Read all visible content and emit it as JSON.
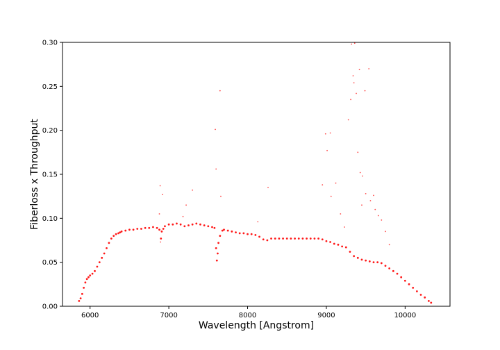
{
  "chart_data": {
    "type": "scatter",
    "title": "",
    "xlabel": "Wavelength [Angstrom]",
    "ylabel": "Fiberloss x Throughput",
    "xlim": [
      5650,
      10570
    ],
    "ylim": [
      0,
      0.3
    ],
    "grid": false,
    "marker_color": "#ff0000",
    "x_ticks": [
      6000,
      7000,
      8000,
      9000,
      10000
    ],
    "x_tick_labels": [
      "6000",
      "7000",
      "8000",
      "9000",
      "10000"
    ],
    "y_ticks": [
      0.0,
      0.05,
      0.1,
      0.15,
      0.2,
      0.25,
      0.3
    ],
    "y_tick_labels": [
      "0.00",
      "0.05",
      "0.10",
      "0.15",
      "0.20",
      "0.25",
      "0.30"
    ],
    "series": [
      {
        "x": [
          5860,
          5880,
          5900,
          5920,
          5940,
          5960,
          5980,
          6000,
          6030,
          6060,
          6090,
          6120,
          6150,
          6180,
          6210,
          6240,
          6270,
          6300,
          6330,
          6360,
          6380,
          6400,
          6450,
          6500,
          6550,
          6600,
          6650,
          6700,
          6750,
          6800,
          6850,
          6880,
          6900,
          6910,
          6930,
          6950,
          7000,
          7050,
          7100,
          7150,
          7200,
          7250,
          7300,
          7350,
          7400,
          7450,
          7500,
          7550,
          7580,
          7600,
          7610,
          7620,
          7630,
          7650,
          7680,
          7700,
          7750,
          7800,
          7850,
          7900,
          7950,
          8000,
          8050,
          8100,
          8150,
          8200,
          8250,
          8300,
          8350,
          8400,
          8450,
          8500,
          8550,
          8600,
          8650,
          8700,
          8750,
          8800,
          8850,
          8900,
          8950,
          9000,
          9050,
          9100,
          9150,
          9200,
          9250,
          9300,
          9350,
          9400,
          9450,
          9500,
          9550,
          9600,
          9650,
          9700,
          9750,
          9800,
          9850,
          9900,
          9950,
          10000,
          10050,
          10100,
          10150,
          10200,
          10250,
          10300,
          10330
        ],
        "y": [
          0.006,
          0.009,
          0.014,
          0.021,
          0.027,
          0.031,
          0.033,
          0.035,
          0.037,
          0.04,
          0.045,
          0.05,
          0.055,
          0.06,
          0.066,
          0.072,
          0.077,
          0.08,
          0.082,
          0.083,
          0.084,
          0.085,
          0.086,
          0.087,
          0.087,
          0.088,
          0.088,
          0.089,
          0.089,
          0.09,
          0.089,
          0.087,
          0.077,
          0.085,
          0.088,
          0.091,
          0.093,
          0.093,
          0.094,
          0.093,
          0.091,
          0.092,
          0.093,
          0.094,
          0.093,
          0.092,
          0.091,
          0.09,
          0.089,
          0.066,
          0.052,
          0.06,
          0.072,
          0.08,
          0.086,
          0.087,
          0.086,
          0.085,
          0.084,
          0.083,
          0.083,
          0.082,
          0.082,
          0.081,
          0.079,
          0.076,
          0.075,
          0.077,
          0.077,
          0.077,
          0.077,
          0.077,
          0.077,
          0.077,
          0.077,
          0.077,
          0.077,
          0.077,
          0.077,
          0.077,
          0.076,
          0.074,
          0.073,
          0.071,
          0.07,
          0.068,
          0.067,
          0.062,
          0.057,
          0.055,
          0.053,
          0.052,
          0.051,
          0.05,
          0.05,
          0.049,
          0.046,
          0.043,
          0.04,
          0.037,
          0.033,
          0.029,
          0.025,
          0.021,
          0.017,
          0.013,
          0.01,
          0.006,
          0.004
        ]
      },
      {
        "x": [
          6880,
          6890,
          6895,
          6920,
          7180,
          7220,
          7300,
          7590,
          7600,
          7650,
          7660,
          8130,
          8260,
          8950,
          8990,
          9010,
          9050,
          9060,
          9120,
          9180,
          9280,
          9310,
          9320,
          9340,
          9350,
          9360,
          9380,
          9400,
          9420,
          9430,
          9460,
          9490,
          9540,
          9560,
          9600,
          9620,
          9660,
          9700,
          9750,
          9800,
          9500,
          9450,
          9230
        ],
        "y": [
          0.105,
          0.137,
          0.073,
          0.127,
          0.102,
          0.115,
          0.132,
          0.201,
          0.156,
          0.245,
          0.125,
          0.096,
          0.135,
          0.138,
          0.196,
          0.177,
          0.197,
          0.125,
          0.14,
          0.105,
          0.212,
          0.235,
          0.298,
          0.262,
          0.254,
          0.299,
          0.242,
          0.175,
          0.269,
          0.152,
          0.148,
          0.245,
          0.27,
          0.12,
          0.126,
          0.11,
          0.103,
          0.098,
          0.085,
          0.07,
          0.128,
          0.115,
          0.09
        ]
      }
    ]
  }
}
